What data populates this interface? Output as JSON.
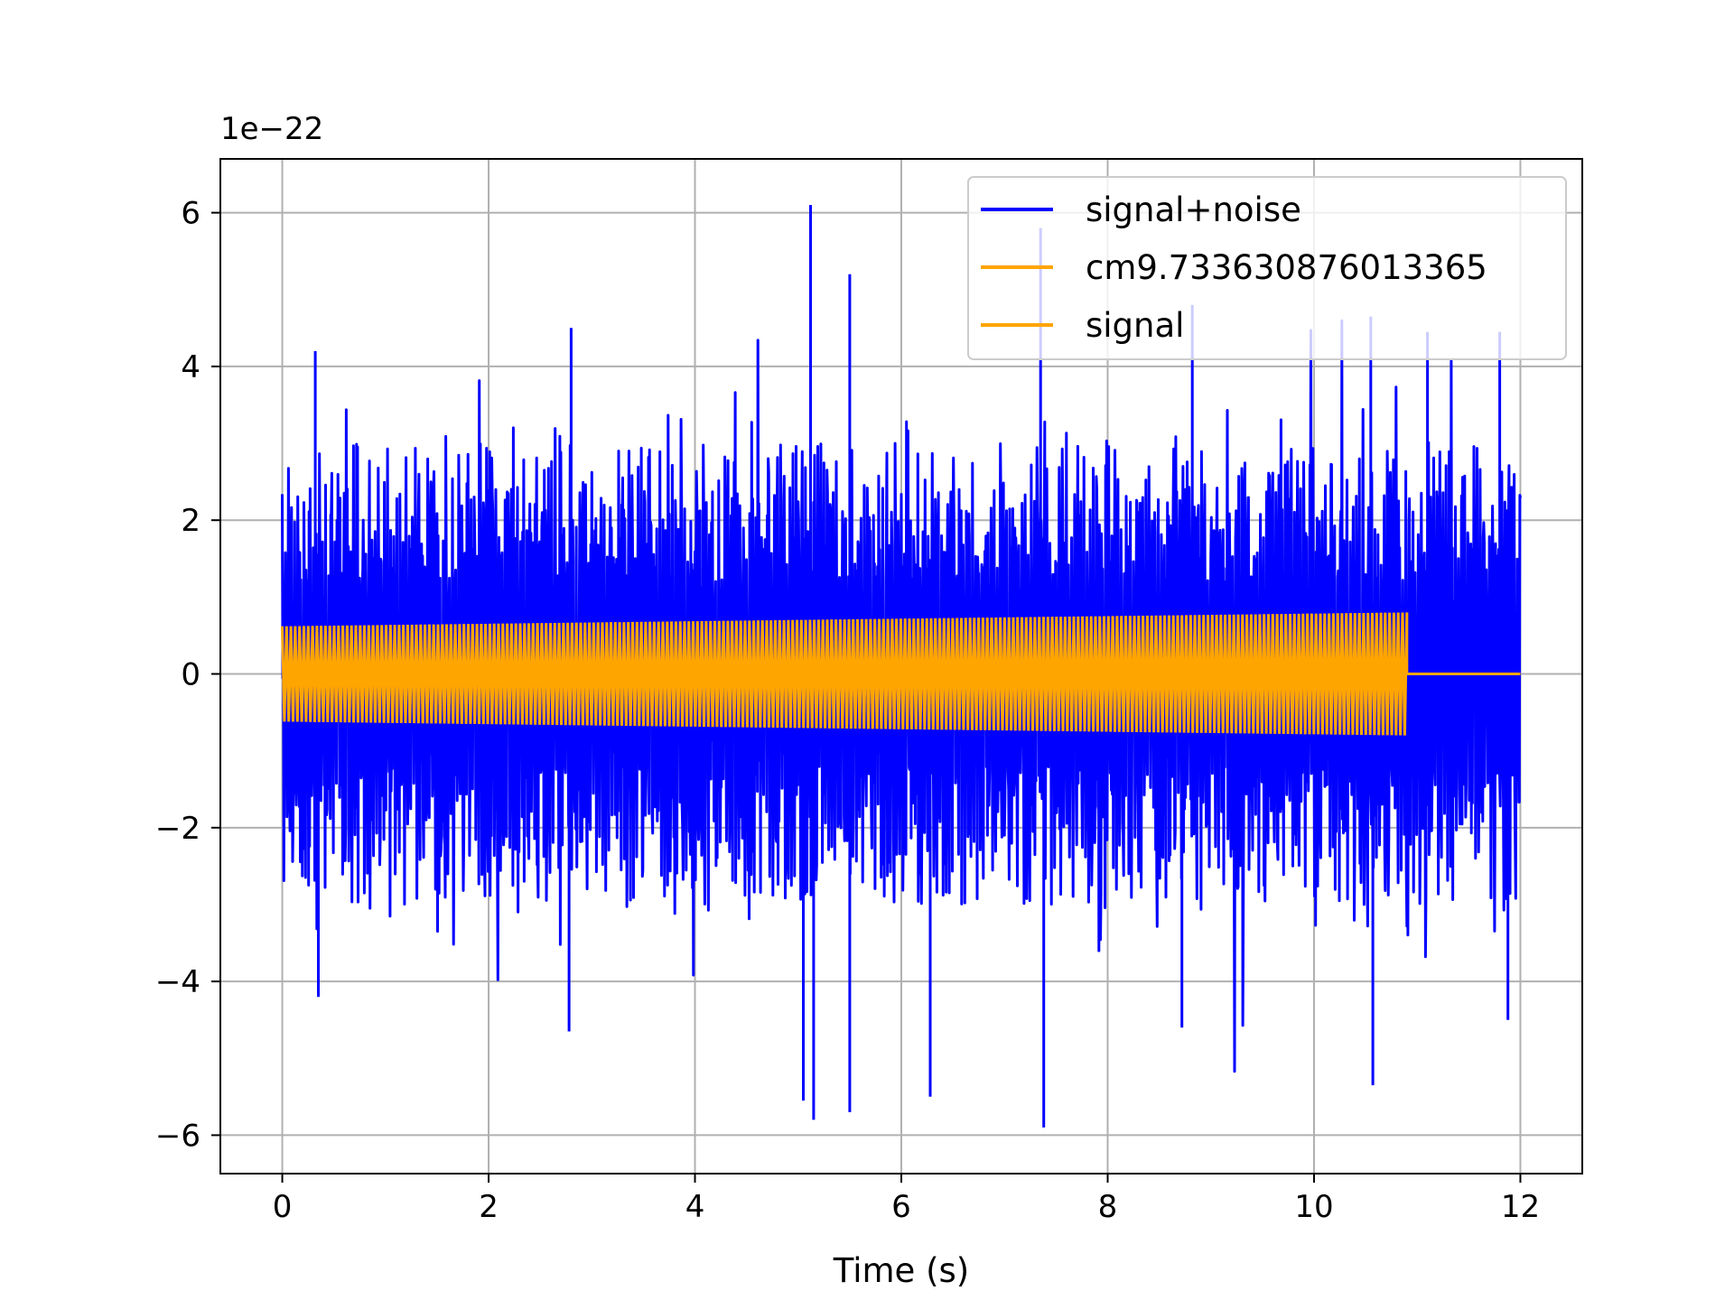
{
  "chart_data": {
    "type": "line",
    "title": "",
    "xlabel": "Time (s)",
    "ylabel": "",
    "y_offset_text": "1e−22",
    "xlim": [
      -0.6,
      12.6
    ],
    "ylim": [
      -6.5,
      6.7
    ],
    "x_ticks": [
      0,
      2,
      4,
      6,
      8,
      10,
      12
    ],
    "y_ticks": [
      -6,
      -4,
      -2,
      0,
      2,
      4,
      6
    ],
    "x_tick_labels": [
      "0",
      "2",
      "4",
      "6",
      "8",
      "10",
      "12"
    ],
    "y_tick_labels": [
      "−6",
      "−4",
      "−2",
      "0",
      "2",
      "4",
      "6"
    ],
    "grid": true,
    "legend_position": "top-right",
    "series": [
      {
        "name": "signal+noise",
        "color": "#0000ff",
        "t_start": 0,
        "t_end": 12.0,
        "typical_envelope": [
          -2.5,
          2.5
        ],
        "max": 6.1,
        "min": -5.85,
        "peaks": [
          {
            "x": 0.32,
            "y": 4.2
          },
          {
            "x": 0.35,
            "y": -4.2
          },
          {
            "x": 2.8,
            "y": 4.5
          },
          {
            "x": 2.78,
            "y": -4.65
          },
          {
            "x": 5.12,
            "y": 6.1
          },
          {
            "x": 5.05,
            "y": -5.55
          },
          {
            "x": 5.15,
            "y": -5.8
          },
          {
            "x": 5.5,
            "y": 5.2
          },
          {
            "x": 5.5,
            "y": -5.7
          },
          {
            "x": 6.28,
            "y": -5.5
          },
          {
            "x": 7.35,
            "y": 5.8
          },
          {
            "x": 7.38,
            "y": -5.9
          },
          {
            "x": 8.82,
            "y": 4.8
          },
          {
            "x": 8.72,
            "y": -4.6
          },
          {
            "x": 10.55,
            "y": 4.65
          },
          {
            "x": 10.57,
            "y": -5.35
          },
          {
            "x": 11.1,
            "y": 4.45
          },
          {
            "x": 11.8,
            "y": 4.45
          },
          {
            "x": 11.88,
            "y": -4.5
          }
        ]
      },
      {
        "name": "cm9.733630876013365",
        "color": "#ffa500",
        "t_start": 0,
        "t_end": 10.9,
        "amplitude_start": 0.62,
        "amplitude_end": 0.8,
        "after_end_value": 0
      },
      {
        "name": "signal",
        "color": "#ffa500"
      }
    ]
  }
}
